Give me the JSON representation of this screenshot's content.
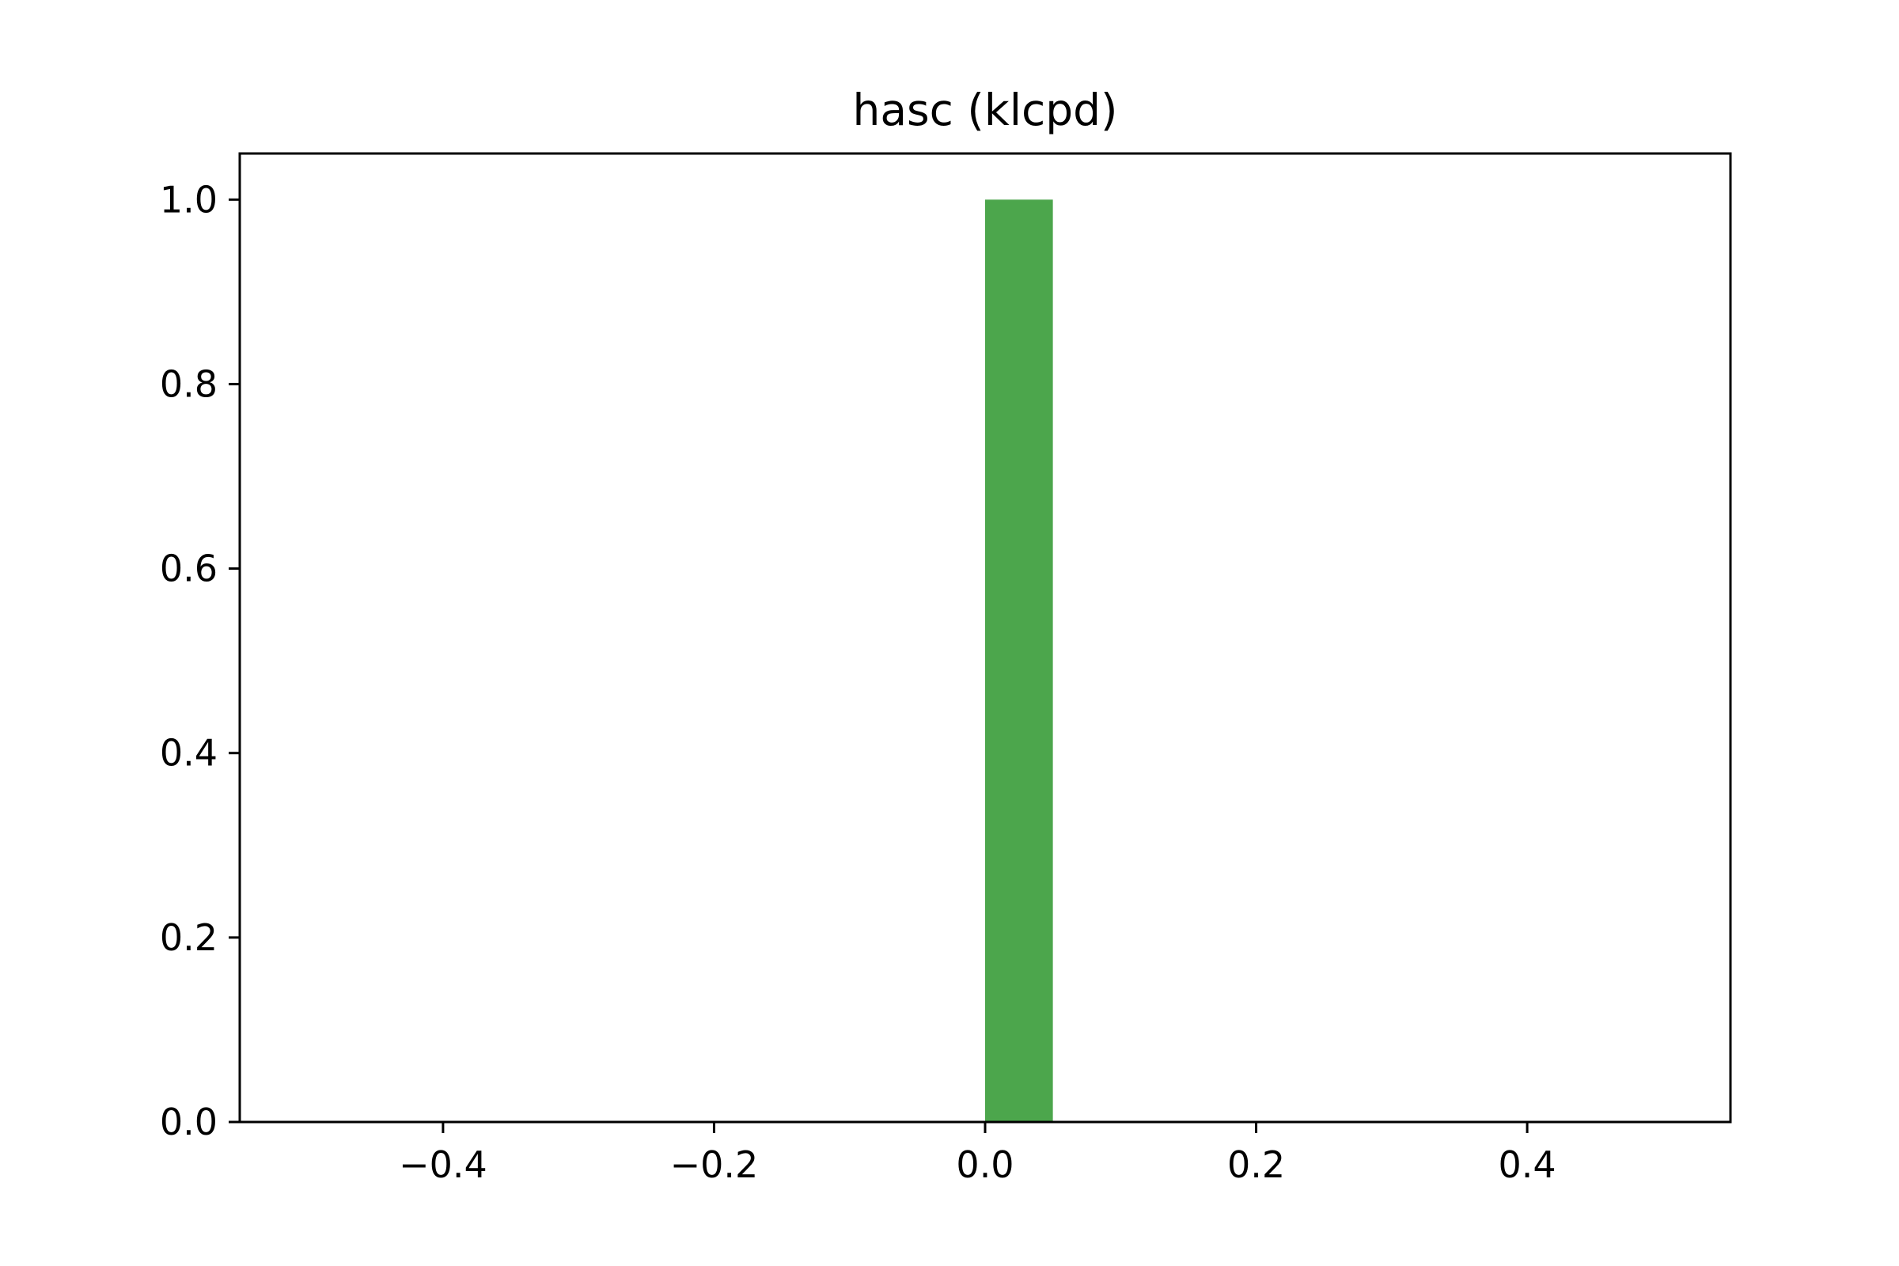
{
  "chart_data": {
    "type": "bar",
    "title": "hasc (klcpd)",
    "xlabel": "",
    "ylabel": "",
    "xlim": [
      -0.55,
      0.55
    ],
    "ylim": [
      0.0,
      1.05
    ],
    "grid": false,
    "bar_color": "#4ca64c",
    "bars": [
      {
        "x_start": 0.0,
        "x_end": 0.05,
        "value": 1.0
      }
    ],
    "x_ticks": [
      {
        "value": -0.4,
        "label": "−0.4"
      },
      {
        "value": -0.2,
        "label": "−0.2"
      },
      {
        "value": 0.0,
        "label": "0.0"
      },
      {
        "value": 0.2,
        "label": "0.2"
      },
      {
        "value": 0.4,
        "label": "0.4"
      }
    ],
    "y_ticks": [
      {
        "value": 0.0,
        "label": "0.0"
      },
      {
        "value": 0.2,
        "label": "0.2"
      },
      {
        "value": 0.4,
        "label": "0.4"
      },
      {
        "value": 0.6,
        "label": "0.6"
      },
      {
        "value": 0.8,
        "label": "0.8"
      },
      {
        "value": 1.0,
        "label": "1.0"
      }
    ]
  }
}
